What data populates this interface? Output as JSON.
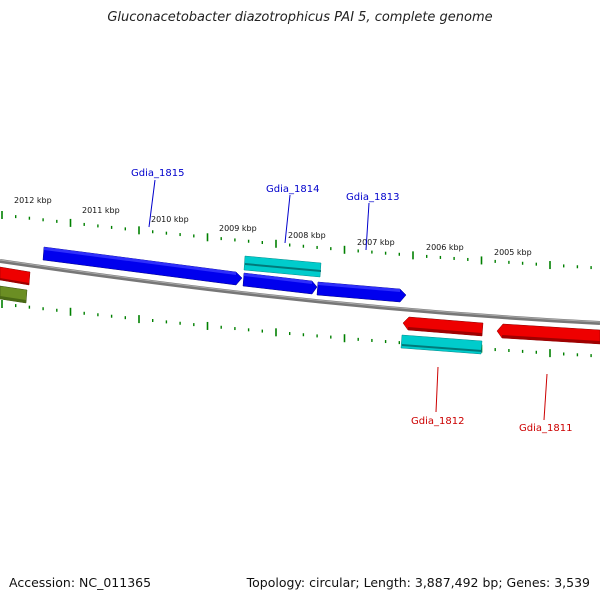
{
  "title": "Gluconacetobacter diazotrophicus PAI 5, complete genome",
  "footer": {
    "accession": "Accession: NC_011365",
    "summary": "Topology: circular; Length: 3,887,492 bp; Genes: 3,539"
  },
  "kbp_labels": [
    "2012 kbp",
    "2011 kbp",
    "2010 kbp",
    "2009 kbp",
    "2008 kbp",
    "2007 kbp",
    "2006 kbp",
    "2005 kbp"
  ],
  "genes": [
    {
      "label": "Gdia_1815",
      "strand": "+",
      "color": "#0000dd"
    },
    {
      "label": "Gdia_1814",
      "strand": "+",
      "color": "#0000dd"
    },
    {
      "label": "Gdia_1813",
      "strand": "+",
      "color": "#0000dd"
    },
    {
      "label": "Gdia_1812",
      "strand": "-",
      "color": "#dd0000"
    },
    {
      "label": "Gdia_1811",
      "strand": "-",
      "color": "#dd0000"
    }
  ],
  "colors": {
    "forward_gene": "#0000ee",
    "reverse_gene": "#ee0000",
    "rna_feature": "#00cccc",
    "other_feature": "#6b8e23",
    "backbone": "#808080",
    "tick": "#008000"
  }
}
